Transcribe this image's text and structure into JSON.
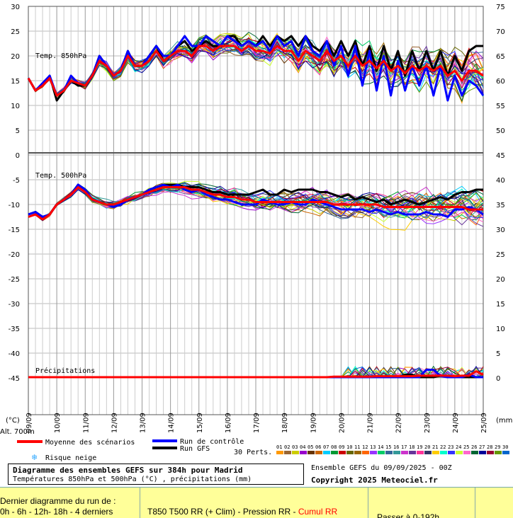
{
  "chart_data": {
    "type": "line",
    "title": "Diagramme des ensembles GEFS sur 384h pour Madrid",
    "subtitle": "Températures 850hPa et 500hPa (°C) , précipitations (mm)",
    "x_tick_labels": [
      "09/09",
      "10/09",
      "11/09",
      "12/09",
      "13/09",
      "14/09",
      "15/09",
      "16/09",
      "17/09",
      "18/09",
      "19/09",
      "20/09",
      "21/09",
      "22/09",
      "23/09",
      "24/09",
      "25/09"
    ],
    "y_left_ticks": [
      30,
      25,
      20,
      15,
      10,
      5,
      0,
      -5,
      -10,
      -15,
      -20,
      -25,
      -30,
      -35,
      -40,
      -45
    ],
    "y_right_ticks": [
      75,
      70,
      65,
      60,
      55,
      50,
      45,
      40,
      35,
      30,
      25,
      20,
      15,
      10,
      5,
      0
    ],
    "left_unit": "(°C)",
    "right_unit": "(mm)",
    "altitude_label": "Alt. 700m",
    "panel_labels": {
      "t850": "Temp. 850hPa",
      "t500": "Temp. 500hPa",
      "precip": "Précipitations"
    },
    "legend": {
      "mean": "Moyenne des scénarios",
      "control": "Run de contrôle",
      "gfs": "Run GFS",
      "snow": "Risque neige",
      "perts": "30 Perts.",
      "pert_numbers": [
        "01",
        "02",
        "03",
        "04",
        "05",
        "06",
        "07",
        "08",
        "09",
        "10",
        "11",
        "12",
        "13",
        "14",
        "15",
        "16",
        "17",
        "18",
        "19",
        "20",
        "21",
        "22",
        "23",
        "24",
        "25",
        "26",
        "27",
        "28",
        "29",
        "30"
      ]
    },
    "colors": {
      "mean": "#ff0000",
      "control": "#0000ff",
      "gfs": "#000000",
      "snow": "#33aaff",
      "grid": "#bbbbbb"
    },
    "pert_colors": [
      "#ff9900",
      "#996633",
      "#cccc00",
      "#9900cc",
      "#663300",
      "#cc6600",
      "#00ccff",
      "#009933",
      "#cc0000",
      "#666600",
      "#996600",
      "#ff6600",
      "#9933ff",
      "#00cc66",
      "#336699",
      "#339999",
      "#cc33cc",
      "#663399",
      "#ff3399",
      "#333366",
      "#ffcc00",
      "#00ffcc",
      "#3333ff",
      "#ccff33",
      "#ff66cc",
      "#006633",
      "#000099",
      "#990033",
      "#669900",
      "#0066cc"
    ],
    "time_steps": 65,
    "series": [
      {
        "name": "Moyenne des scénarios",
        "panel": "t850",
        "values": [
          15.5,
          13,
          14,
          15.5,
          12,
          13,
          15,
          14.5,
          14,
          16,
          19,
          18,
          16,
          17,
          20,
          18,
          18,
          19,
          21,
          19,
          20,
          21,
          21,
          20,
          22,
          22,
          21,
          22,
          22,
          22,
          21,
          22,
          21,
          21,
          20.5,
          22,
          21,
          21,
          19,
          21,
          20,
          19,
          21,
          19,
          20,
          18,
          20,
          18,
          19,
          17.5,
          19,
          17,
          18,
          16.5,
          18,
          17,
          18,
          17,
          18,
          16,
          17,
          15,
          17,
          17,
          16
        ]
      },
      {
        "name": "Run de contrôle",
        "panel": "t850",
        "values": [
          15.5,
          13,
          14.5,
          16,
          12,
          13,
          16,
          14.5,
          14,
          16,
          20,
          18,
          16,
          17,
          21,
          18,
          18,
          20,
          22,
          20,
          20,
          22,
          24,
          22,
          22,
          24,
          23,
          22,
          24,
          23,
          22,
          23,
          22,
          23,
          21,
          24,
          22,
          23,
          20,
          24,
          21,
          20,
          23,
          18,
          22,
          16,
          22,
          14,
          21,
          13,
          20,
          12,
          19,
          13,
          18,
          14,
          18,
          12,
          18,
          11,
          16,
          12,
          15,
          14,
          12
        ]
      },
      {
        "name": "Run GFS",
        "panel": "t850",
        "values": [
          15.5,
          13,
          14,
          16,
          11,
          13,
          15,
          14,
          14,
          16,
          20,
          18,
          16,
          17,
          21,
          18,
          18,
          20,
          22,
          19,
          20,
          22,
          23,
          21,
          22,
          23,
          22,
          22,
          24,
          24,
          22,
          23,
          22,
          24,
          22,
          24,
          23,
          24,
          22,
          24,
          22,
          21,
          23,
          20,
          23,
          20,
          23,
          18,
          22,
          17,
          22,
          17,
          21,
          16,
          21,
          17,
          21,
          17,
          21,
          16,
          20,
          17,
          21,
          22,
          22
        ]
      },
      {
        "name": "Moyenne des scénarios",
        "panel": "t500",
        "values": [
          -12.5,
          -12,
          -13,
          -12,
          -10,
          -9,
          -8,
          -6.5,
          -7.5,
          -9,
          -9.5,
          -10,
          -10,
          -9.5,
          -9,
          -8.5,
          -8,
          -7.5,
          -7,
          -6.5,
          -6.5,
          -6.5,
          -6.5,
          -7,
          -7,
          -7.5,
          -8,
          -8,
          -8.5,
          -8.5,
          -9,
          -9,
          -9.5,
          -9.5,
          -9.5,
          -9.5,
          -9.5,
          -9.5,
          -9.5,
          -9.5,
          -9.5,
          -9.5,
          -9.5,
          -10,
          -10,
          -10,
          -10,
          -10,
          -10,
          -10,
          -10.5,
          -10.5,
          -10.5,
          -10.5,
          -10.5,
          -10.5,
          -10.5,
          -10.5,
          -10.5,
          -10.5,
          -10.5,
          -10.5,
          -11,
          -11,
          -11
        ]
      },
      {
        "name": "Run de contrôle",
        "panel": "t500",
        "values": [
          -12,
          -11.5,
          -12.5,
          -12,
          -10,
          -9,
          -8,
          -6,
          -7,
          -9,
          -9.5,
          -10,
          -10.5,
          -10,
          -9,
          -8.5,
          -8,
          -7,
          -6.5,
          -6,
          -6.5,
          -6,
          -7,
          -7.5,
          -7,
          -8,
          -8.5,
          -9,
          -9,
          -9.5,
          -10,
          -10,
          -10,
          -9,
          -9.5,
          -10,
          -10,
          -9.5,
          -10,
          -10,
          -9,
          -9.5,
          -10,
          -10.5,
          -11,
          -11,
          -11,
          -11,
          -11.5,
          -11,
          -11.5,
          -12,
          -11.5,
          -12,
          -12,
          -12,
          -11.5,
          -12,
          -12,
          -12.5,
          -11,
          -11,
          -10.5,
          -11,
          -12
        ]
      },
      {
        "name": "Run GFS",
        "panel": "t500",
        "values": [
          -12,
          -11.5,
          -12.5,
          -12,
          -10,
          -9,
          -8,
          -6,
          -7,
          -9,
          -9.5,
          -10,
          -10,
          -9.5,
          -9,
          -8.5,
          -8,
          -7,
          -6.5,
          -6,
          -6,
          -6,
          -6.5,
          -6.5,
          -6.5,
          -7,
          -7.5,
          -7.5,
          -8,
          -8,
          -8,
          -8,
          -7.5,
          -7,
          -8,
          -8,
          -7,
          -7.5,
          -7,
          -7,
          -7,
          -7.5,
          -7.5,
          -8,
          -8.5,
          -8,
          -9,
          -8.5,
          -9,
          -9.5,
          -9,
          -10,
          -9.5,
          -9,
          -9.5,
          -10,
          -9.5,
          -9,
          -8.5,
          -9,
          -8,
          -7.5,
          -7.5,
          -7,
          -7
        ]
      },
      {
        "name": "Moyenne des scénarios",
        "panel": "precip",
        "values": [
          0,
          0,
          0,
          0,
          0,
          0,
          0,
          0,
          0,
          0,
          0,
          0,
          0,
          0,
          0,
          0,
          0,
          0,
          0,
          0,
          0,
          0,
          0,
          0,
          0,
          0,
          0,
          0,
          0,
          0,
          0,
          0,
          0,
          0,
          0,
          0,
          0,
          0,
          0,
          0,
          0,
          0,
          0,
          0.1,
          0.1,
          0.1,
          0.1,
          0.1,
          0.1,
          0.2,
          0.2,
          0.2,
          0.2,
          0.2,
          0.2,
          0.3,
          0.3,
          0.3,
          0.3,
          0.3,
          0.2,
          0.3,
          0.3,
          1.2,
          0.5
        ]
      },
      {
        "name": "Run de contrôle",
        "panel": "precip",
        "values": [
          0,
          0,
          0,
          0,
          0,
          0,
          0,
          0,
          0,
          0,
          0,
          0,
          0,
          0,
          0,
          0,
          0,
          0,
          0,
          0,
          0,
          0,
          0,
          0,
          0,
          0,
          0,
          0,
          0,
          0,
          0,
          0,
          0,
          0,
          0,
          0,
          0,
          0,
          0,
          0,
          0,
          0,
          0,
          0,
          0,
          0,
          0,
          0,
          0,
          0,
          0,
          0,
          0,
          0,
          0,
          0,
          1.5,
          1.5,
          0.2,
          0,
          0,
          0,
          0.5,
          0,
          0
        ]
      },
      {
        "name": "Run GFS",
        "panel": "precip",
        "values": [
          0,
          0,
          0,
          0,
          0,
          0,
          0,
          0,
          0,
          0,
          0,
          0,
          0,
          0,
          0,
          0,
          0,
          0,
          0,
          0,
          0,
          0,
          0,
          0,
          0,
          0,
          0,
          0,
          0,
          0,
          0,
          0,
          0,
          0,
          0,
          0,
          0,
          0,
          0,
          0,
          0,
          0,
          0,
          0,
          0,
          0,
          0,
          0,
          0,
          0,
          0,
          0,
          0,
          0.5,
          0.5,
          0,
          0,
          0,
          0.3,
          0,
          0,
          0,
          0,
          0,
          0
        ]
      }
    ]
  },
  "info": {
    "ensemble_line": "Ensemble GEFS du 09/09/2025 - 00Z",
    "copyright": "Copyright 2025 Meteociel.fr"
  },
  "nav": {
    "cell1_line1": "Dernier diagramme du run de :",
    "cell1_line2": "0h - 6h - 12h- 18h - 4 derniers",
    "cell2_text": "T850 T500 RR (+ Clim) - Pression RR - ",
    "cell2_highlight": "Cumul RR",
    "cell3_text": "Passer à 0-192h"
  }
}
